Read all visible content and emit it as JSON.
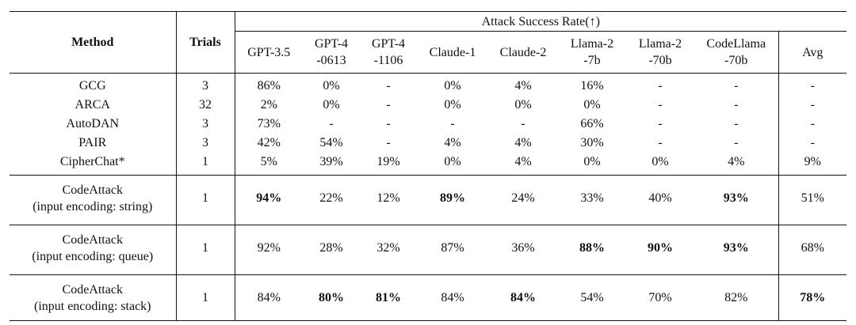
{
  "table": {
    "col_method": "Method",
    "col_trials": "Trials",
    "group_header": "Attack Success Rate(↑)",
    "models": [
      [
        "GPT-3.5"
      ],
      [
        "GPT-4",
        "-0613"
      ],
      [
        "GPT-4",
        "-1106"
      ],
      [
        "Claude-1"
      ],
      [
        "Claude-2"
      ],
      [
        "Llama-2",
        "-7b"
      ],
      [
        "Llama-2",
        "-70b"
      ],
      [
        "CodeLlama",
        "-70b"
      ],
      [
        "Avg"
      ]
    ],
    "baselines": [
      {
        "method": "GCG",
        "trials": "3",
        "values": [
          "86%",
          "0%",
          "-",
          "0%",
          "4%",
          "16%",
          "-",
          "-",
          "-"
        ]
      },
      {
        "method": "ARCA",
        "trials": "32",
        "values": [
          "2%",
          "0%",
          "-",
          "0%",
          "0%",
          "0%",
          "-",
          "-",
          "-"
        ]
      },
      {
        "method": "AutoDAN",
        "trials": "3",
        "values": [
          "73%",
          "-",
          "-",
          "-",
          "-",
          "66%",
          "-",
          "-",
          "-"
        ]
      },
      {
        "method": "PAIR",
        "trials": "3",
        "values": [
          "42%",
          "54%",
          "-",
          "4%",
          "4%",
          "30%",
          "-",
          "-",
          "-"
        ]
      },
      {
        "method": "CipherChat*",
        "trials": "1",
        "values": [
          "5%",
          "39%",
          "19%",
          "0%",
          "4%",
          "0%",
          "0%",
          "4%",
          "9%"
        ]
      }
    ],
    "codeattack": [
      {
        "method_line1": "CodeAttack",
        "method_line2": "(input encoding: string)",
        "trials": "1",
        "values": [
          "94%",
          "22%",
          "12%",
          "89%",
          "24%",
          "33%",
          "40%",
          "93%",
          "51%"
        ],
        "bold": [
          true,
          false,
          false,
          true,
          false,
          false,
          false,
          true,
          false
        ]
      },
      {
        "method_line1": "CodeAttack",
        "method_line2": "(input encoding: queue)",
        "trials": "1",
        "values": [
          "92%",
          "28%",
          "32%",
          "87%",
          "36%",
          "88%",
          "90%",
          "93%",
          "68%"
        ],
        "bold": [
          false,
          false,
          false,
          false,
          false,
          true,
          true,
          true,
          false
        ]
      },
      {
        "method_line1": "CodeAttack",
        "method_line2": "(input encoding: stack)",
        "trials": "1",
        "values": [
          "84%",
          "80%",
          "81%",
          "84%",
          "84%",
          "54%",
          "70%",
          "82%",
          "78%"
        ],
        "bold": [
          false,
          true,
          true,
          false,
          true,
          false,
          false,
          false,
          true
        ]
      }
    ]
  }
}
